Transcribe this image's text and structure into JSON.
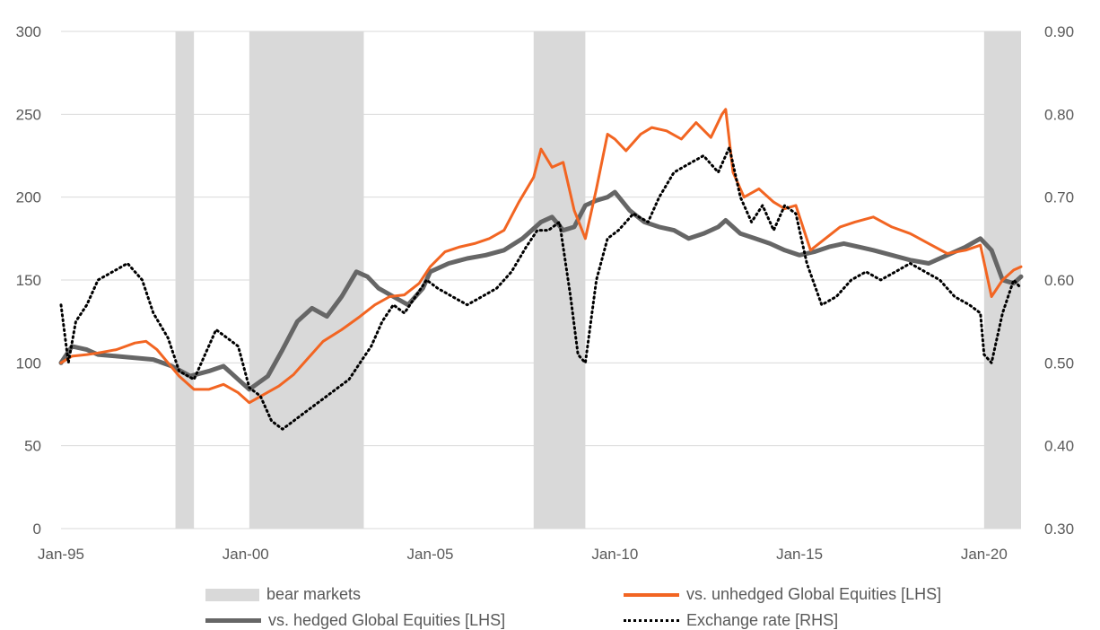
{
  "chart_data": {
    "type": "line",
    "title": "",
    "xlabel": "",
    "ylabel": "",
    "x_ticks": [
      "Jan-95",
      "Jan-00",
      "Jan-05",
      "Jan-10",
      "Jan-15",
      "Jan-20"
    ],
    "x_range": [
      1995.0,
      2021.0
    ],
    "y_left": {
      "lim": [
        0,
        300
      ],
      "ticks": [
        "0",
        "50",
        "100",
        "150",
        "200",
        "250",
        "300"
      ]
    },
    "y_right": {
      "lim": [
        0.3,
        0.9
      ],
      "ticks": [
        "0.30",
        "0.40",
        "0.50",
        "0.60",
        "0.70",
        "0.80",
        "0.90"
      ]
    },
    "grid": "horizontal",
    "legend_position": "bottom",
    "bear_markets": [
      [
        1998.1,
        1998.6
      ],
      [
        2000.1,
        2003.2
      ],
      [
        2007.8,
        2009.2
      ],
      [
        2020.0,
        2021.0
      ]
    ],
    "series": [
      {
        "name": "bear markets",
        "type": "area",
        "color": "#d9d9d9"
      },
      {
        "name": "vs. unhedged Global Equities [LHS]",
        "axis": "left",
        "style": "solid",
        "color": "#f26522",
        "x": [
          1995.0,
          1995.3,
          1995.7,
          1996.0,
          1996.5,
          1997.0,
          1997.3,
          1997.6,
          1997.9,
          1998.2,
          1998.6,
          1999.0,
          1999.4,
          1999.8,
          2000.1,
          2000.5,
          2000.9,
          2001.3,
          2001.7,
          2002.1,
          2002.6,
          2003.1,
          2003.5,
          2003.9,
          2004.3,
          2004.7,
          2005.0,
          2005.4,
          2005.8,
          2006.2,
          2006.6,
          2007.0,
          2007.4,
          2007.8,
          2008.0,
          2008.3,
          2008.6,
          2008.9,
          2009.2,
          2009.5,
          2009.8,
          2010.0,
          2010.3,
          2010.7,
          2011.0,
          2011.4,
          2011.8,
          2012.2,
          2012.6,
          2012.9,
          2013.0,
          2013.2,
          2013.5,
          2013.9,
          2014.3,
          2014.6,
          2014.9,
          2015.3,
          2015.7,
          2016.1,
          2016.5,
          2017.0,
          2017.5,
          2018.0,
          2018.5,
          2019.0,
          2019.5,
          2019.9,
          2020.2,
          2020.5,
          2020.8,
          2021.0
        ],
        "values": [
          100,
          104,
          105,
          106,
          108,
          112,
          113,
          108,
          100,
          92,
          84,
          84,
          87,
          82,
          76,
          81,
          86,
          93,
          103,
          113,
          120,
          128,
          135,
          140,
          141,
          148,
          158,
          167,
          170,
          172,
          175,
          180,
          197,
          212,
          229,
          218,
          221,
          192,
          175,
          205,
          238,
          235,
          228,
          238,
          242,
          240,
          235,
          245,
          236,
          250,
          253,
          215,
          200,
          205,
          197,
          193,
          195,
          168,
          175,
          182,
          185,
          188,
          182,
          178,
          172,
          166,
          168,
          171,
          140,
          150,
          156,
          158
        ]
      },
      {
        "name": "vs. hedged Global Equities [LHS]",
        "axis": "left",
        "style": "solid-thick",
        "color": "#666666",
        "x": [
          1995.0,
          1995.3,
          1995.7,
          1996.0,
          1996.5,
          1997.0,
          1997.5,
          1998.0,
          1998.5,
          1999.0,
          1999.4,
          1999.8,
          2000.1,
          2000.6,
          2001.0,
          2001.4,
          2001.8,
          2002.2,
          2002.6,
          2003.0,
          2003.3,
          2003.6,
          2004.0,
          2004.4,
          2004.8,
          2005.0,
          2005.5,
          2006.0,
          2006.5,
          2007.0,
          2007.5,
          2008.0,
          2008.3,
          2008.6,
          2008.9,
          2009.2,
          2009.5,
          2009.8,
          2010.0,
          2010.4,
          2010.8,
          2011.2,
          2011.6,
          2012.0,
          2012.4,
          2012.8,
          2013.0,
          2013.4,
          2013.8,
          2014.2,
          2014.6,
          2015.0,
          2015.4,
          2015.8,
          2016.2,
          2016.6,
          2017.0,
          2017.5,
          2018.0,
          2018.5,
          2019.0,
          2019.5,
          2019.9,
          2020.2,
          2020.5,
          2020.8,
          2021.0
        ],
        "values": [
          100,
          110,
          108,
          105,
          104,
          103,
          102,
          98,
          92,
          95,
          98,
          90,
          84,
          92,
          108,
          125,
          133,
          128,
          140,
          155,
          152,
          145,
          140,
          135,
          145,
          155,
          160,
          163,
          165,
          168,
          175,
          185,
          188,
          180,
          182,
          195,
          198,
          200,
          203,
          192,
          185,
          182,
          180,
          175,
          178,
          182,
          186,
          178,
          175,
          172,
          168,
          165,
          167,
          170,
          172,
          170,
          168,
          165,
          162,
          160,
          165,
          170,
          175,
          168,
          150,
          148,
          152
        ]
      },
      {
        "name": "Exchange rate [RHS]",
        "axis": "right",
        "style": "dotted",
        "color": "#000000",
        "x": [
          1995.0,
          1995.2,
          1995.4,
          1995.7,
          1996.0,
          1996.4,
          1996.8,
          1997.2,
          1997.5,
          1997.9,
          1998.2,
          1998.6,
          1998.9,
          1999.2,
          1999.5,
          1999.8,
          2000.1,
          2000.4,
          2000.7,
          2001.0,
          2001.3,
          2001.6,
          2001.9,
          2002.2,
          2002.5,
          2002.8,
          2003.1,
          2003.4,
          2003.7,
          2004.0,
          2004.3,
          2004.6,
          2004.9,
          2005.2,
          2005.6,
          2006.0,
          2006.4,
          2006.8,
          2007.2,
          2007.6,
          2007.9,
          2008.2,
          2008.5,
          2008.8,
          2009.0,
          2009.2,
          2009.5,
          2009.8,
          2010.1,
          2010.5,
          2010.9,
          2011.2,
          2011.6,
          2012.0,
          2012.4,
          2012.8,
          2013.1,
          2013.4,
          2013.7,
          2014.0,
          2014.3,
          2014.6,
          2014.9,
          2015.2,
          2015.6,
          2016.0,
          2016.4,
          2016.8,
          2017.2,
          2017.6,
          2018.0,
          2018.4,
          2018.8,
          2019.2,
          2019.6,
          2019.9,
          2020.0,
          2020.2,
          2020.5,
          2020.8,
          2021.0
        ],
        "values": [
          0.57,
          0.5,
          0.55,
          0.57,
          0.6,
          0.61,
          0.62,
          0.6,
          0.56,
          0.53,
          0.49,
          0.48,
          0.51,
          0.54,
          0.53,
          0.52,
          0.47,
          0.46,
          0.43,
          0.42,
          0.43,
          0.44,
          0.45,
          0.46,
          0.47,
          0.48,
          0.5,
          0.52,
          0.55,
          0.57,
          0.56,
          0.58,
          0.6,
          0.59,
          0.58,
          0.57,
          0.58,
          0.59,
          0.61,
          0.64,
          0.66,
          0.66,
          0.67,
          0.58,
          0.51,
          0.5,
          0.6,
          0.65,
          0.66,
          0.68,
          0.67,
          0.7,
          0.73,
          0.74,
          0.75,
          0.73,
          0.76,
          0.7,
          0.67,
          0.69,
          0.66,
          0.69,
          0.68,
          0.62,
          0.57,
          0.58,
          0.6,
          0.61,
          0.6,
          0.61,
          0.62,
          0.61,
          0.6,
          0.58,
          0.57,
          0.56,
          0.51,
          0.5,
          0.56,
          0.6,
          0.59
        ]
      }
    ]
  }
}
